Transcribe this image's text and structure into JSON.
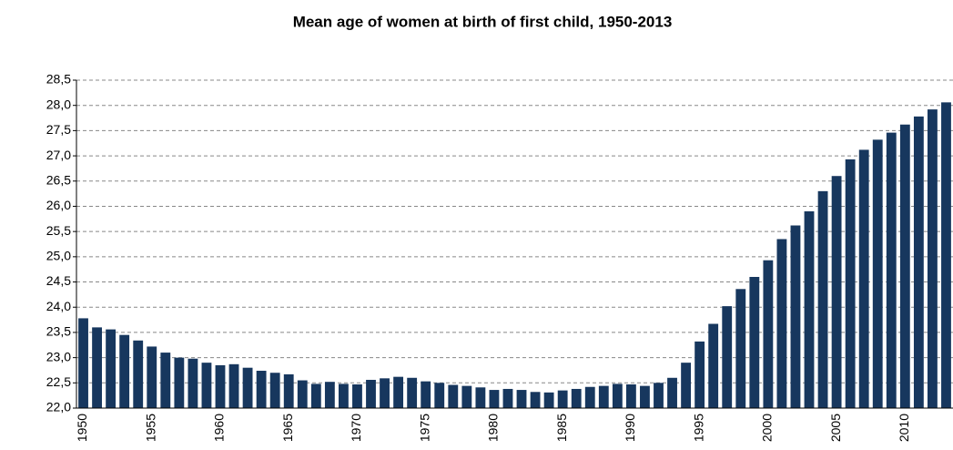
{
  "chart_data": {
    "type": "bar",
    "title": "Mean age of women at birth of first child, 1950-2013",
    "categories": [
      "1950",
      null,
      null,
      null,
      null,
      "1955",
      null,
      null,
      null,
      null,
      "1960",
      null,
      null,
      null,
      null,
      "1965",
      null,
      null,
      null,
      null,
      "1970",
      null,
      null,
      null,
      null,
      "1975",
      null,
      null,
      null,
      null,
      "1980",
      null,
      null,
      null,
      null,
      "1985",
      null,
      null,
      null,
      null,
      "1990",
      null,
      null,
      null,
      null,
      "1995",
      null,
      null,
      null,
      null,
      "2000",
      null,
      null,
      null,
      null,
      "2005",
      null,
      null,
      null,
      null,
      "2010",
      null,
      null,
      null
    ],
    "values": [
      23.78,
      23.6,
      23.56,
      23.45,
      23.34,
      23.22,
      23.1,
      23.0,
      22.98,
      22.9,
      22.85,
      22.87,
      22.8,
      22.74,
      22.7,
      22.67,
      22.55,
      22.48,
      22.52,
      22.48,
      22.47,
      22.56,
      22.59,
      22.62,
      22.6,
      22.53,
      22.5,
      22.46,
      22.44,
      22.41,
      22.36,
      22.38,
      22.36,
      22.32,
      22.31,
      22.35,
      22.38,
      22.42,
      22.44,
      22.48,
      22.47,
      22.44,
      22.5,
      22.6,
      22.9,
      23.32,
      23.67,
      24.02,
      24.36,
      24.6,
      24.93,
      25.35,
      25.62,
      25.9,
      26.3,
      26.6,
      26.93,
      27.12,
      27.32,
      27.46,
      27.62,
      27.78,
      27.92,
      28.06
    ],
    "color": "#17375e",
    "ylim": [
      22,
      28.5
    ],
    "yticks": [
      {
        "value": 22,
        "label": "22,0"
      },
      {
        "value": 22.5,
        "label": "22,5"
      },
      {
        "value": 23,
        "label": "23,0"
      },
      {
        "value": 23.5,
        "label": "23,5"
      },
      {
        "value": 24,
        "label": "24,0"
      },
      {
        "value": 24.5,
        "label": "24,5"
      },
      {
        "value": 25,
        "label": "25,0"
      },
      {
        "value": 25.5,
        "label": "25,5"
      },
      {
        "value": 26,
        "label": "26,0"
      },
      {
        "value": 26.5,
        "label": "26,5"
      },
      {
        "value": 27,
        "label": "27,0"
      },
      {
        "value": 27.5,
        "label": "27,5"
      },
      {
        "value": 28,
        "label": "28,0"
      },
      {
        "value": 28.5,
        "label": "28,5"
      }
    ],
    "grid": true
  }
}
